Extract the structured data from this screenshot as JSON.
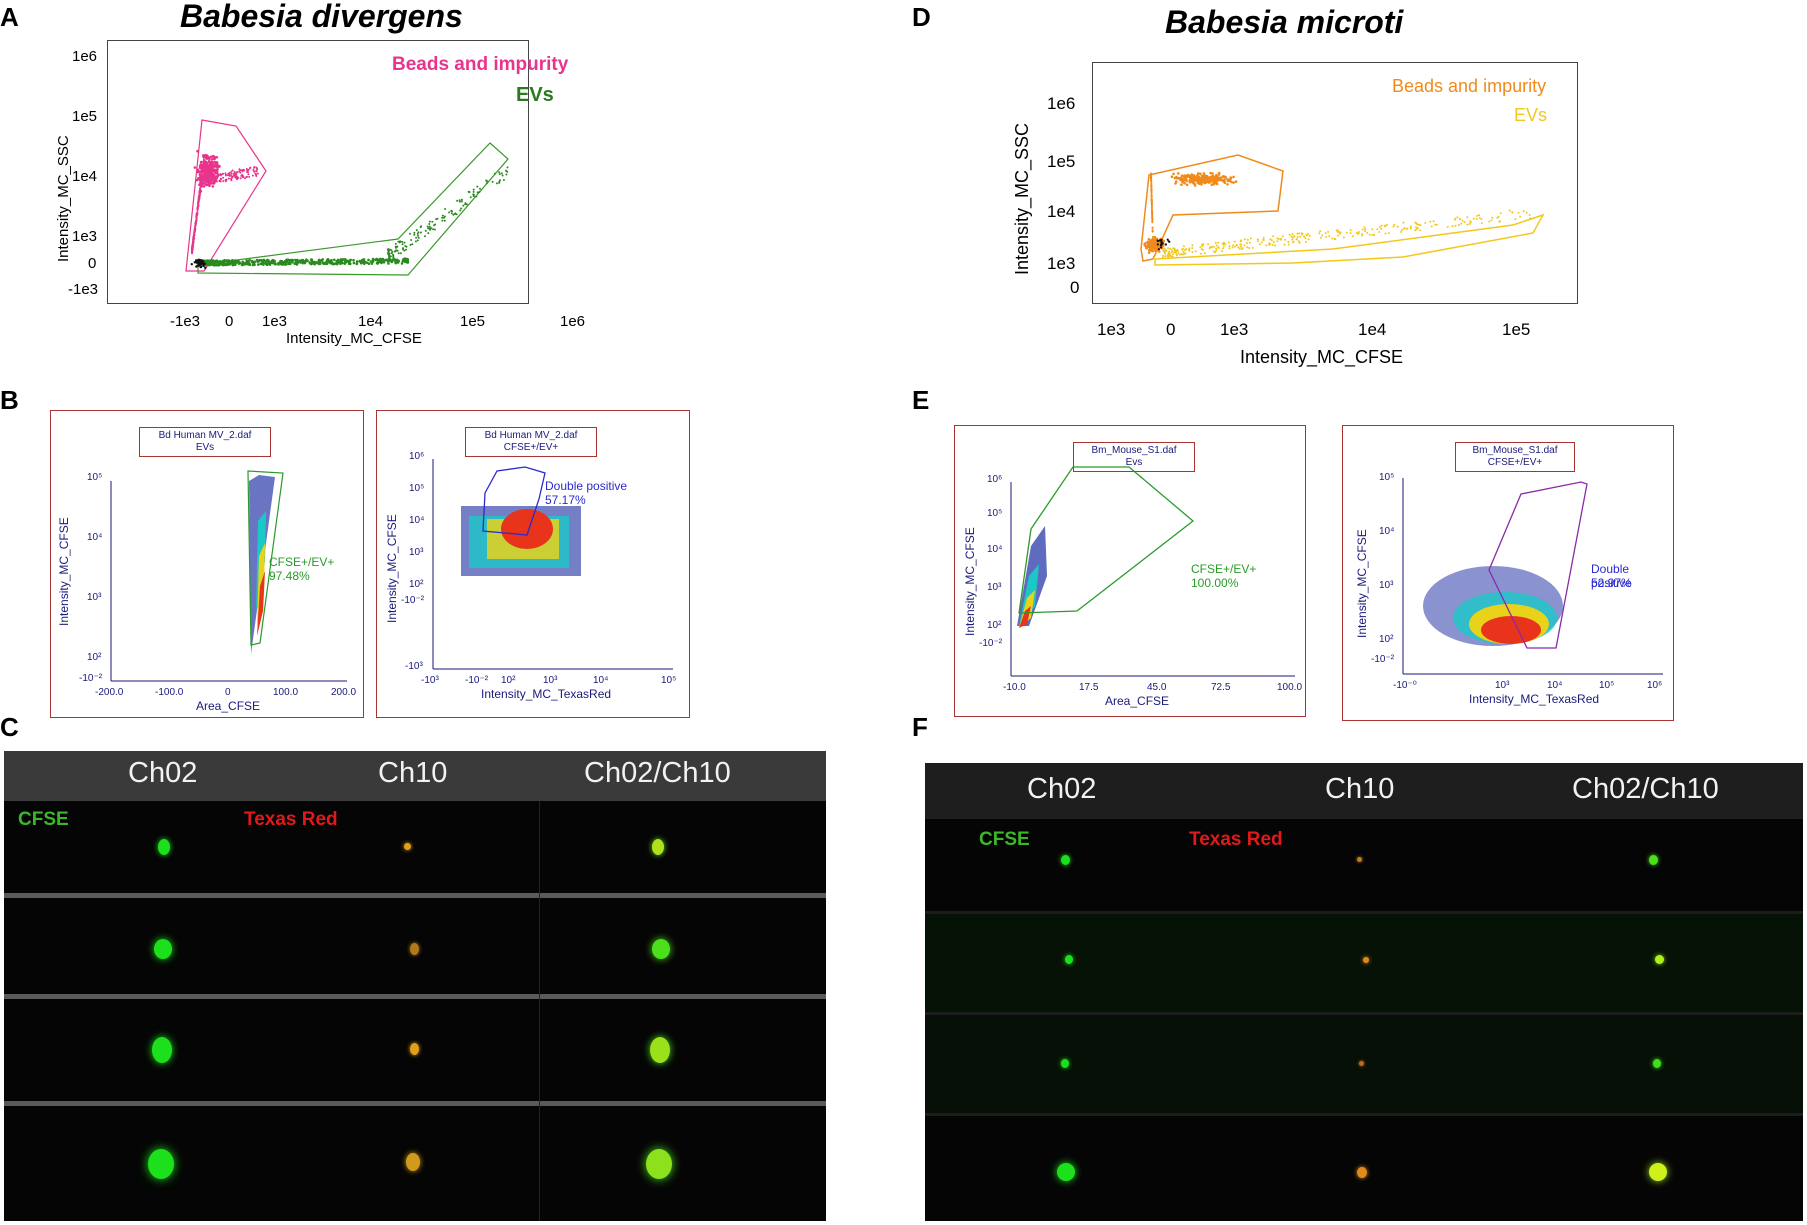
{
  "panel_labels": {
    "A": "A",
    "B": "B",
    "C": "C",
    "D": "D",
    "E": "E",
    "F": "F"
  },
  "species": {
    "left": "Babesia divergens",
    "right": "Babesia microti"
  },
  "colors": {
    "magenta": "#e8348c",
    "green": "#2a7a1e",
    "orange": "#f08a1c",
    "yellow": "#f2c81a",
    "blue": "#2a2ad0",
    "darkred": "#a33333"
  },
  "panel_A": {
    "xlabel": "Intensity_MC_CFSE",
    "ylabel": "Intensity_MC_SSC",
    "xticks": [
      "-1e3",
      "0",
      "1e3",
      "1e4",
      "1e5",
      "1e6"
    ],
    "yticks": [
      "1e6",
      "1e5",
      "1e4",
      "1e3",
      "0",
      "-1e3"
    ],
    "legend": [
      {
        "text": "Beads and impurity",
        "color": "#e8348c"
      },
      {
        "text": "EVs",
        "color": "#2a7a1e"
      }
    ]
  },
  "panel_D": {
    "xlabel": "Intensity_MC_CFSE",
    "ylabel": "Intensity_MC_SSC",
    "xticks": [
      "1e3",
      "0",
      "1e3",
      "1e4",
      "1e5"
    ],
    "yticks": [
      "1e6",
      "1e5",
      "1e4",
      "1e3",
      "0"
    ],
    "legend": [
      {
        "text": "Beads and impurity",
        "color": "#f08a1c"
      },
      {
        "text": "EVs",
        "color": "#f2c81a"
      }
    ]
  },
  "panel_B": {
    "left": {
      "title1": "Bd Human MV_2.daf",
      "title2": "EVs",
      "xlabel": "Area_CFSE",
      "ylabel": "Intensity_MC_CFSE",
      "xticks": [
        "-200.0",
        "-100.0",
        "0",
        "100.0",
        "200.0"
      ],
      "yticks": [
        "10⁵",
        "10⁴",
        "10³",
        "10²",
        "-10⁻²"
      ],
      "gate_name": "CFSE+/EV+",
      "gate_pct": "97.48%"
    },
    "right": {
      "title1": "Bd Human MV_2.daf",
      "title2": "CFSE+/EV+",
      "xlabel": "Intensity_MC_TexasRed",
      "ylabel": "Intensity_MC_CFSE",
      "xticks": [
        "-10³",
        "-10⁻²",
        "10²",
        "10³",
        "10⁴",
        "10⁵"
      ],
      "yticks": [
        "10⁶",
        "10⁵",
        "10⁴",
        "10³",
        "10²",
        "-10⁻²",
        "-10³"
      ],
      "gate_name": "Double positive",
      "gate_pct": "57.17%"
    }
  },
  "panel_E": {
    "left": {
      "title1": "Bm_Mouse_S1.daf",
      "title2": "Evs",
      "xlabel": "Area_CFSE",
      "ylabel": "Intensity_MC_CFSE",
      "xticks": [
        "-10.0",
        "17.5",
        "45.0",
        "72.5",
        "100.0"
      ],
      "yticks": [
        "10⁶",
        "10⁵",
        "10⁴",
        "10³",
        "10²",
        "-10⁻²"
      ],
      "gate_name": "CFSE+/EV+",
      "gate_pct": "100.00%"
    },
    "right": {
      "title1": "Bm_Mouse_S1.daf",
      "title2": "CFSE+/EV+",
      "xlabel": "Intensity_MC_TexasRed",
      "ylabel": "Intensity_MC_CFSE",
      "xticks": [
        "-10⁻⁰",
        "10³",
        "10⁴",
        "10⁵",
        "10⁶"
      ],
      "yticks": [
        "10⁵",
        "10⁴",
        "10³",
        "10²",
        "-10⁻²"
      ],
      "gate_name": "Double positive",
      "gate_pct": "52.97%"
    }
  },
  "panel_C": {
    "headers": [
      "Ch02",
      "Ch10",
      "Ch02/Ch10"
    ],
    "cfse_label": "CFSE",
    "texas_label": "Texas Red"
  },
  "panel_F": {
    "headers": [
      "Ch02",
      "Ch10",
      "Ch02/Ch10"
    ],
    "cfse_label": "CFSE",
    "texas_label": "Texas Red"
  }
}
